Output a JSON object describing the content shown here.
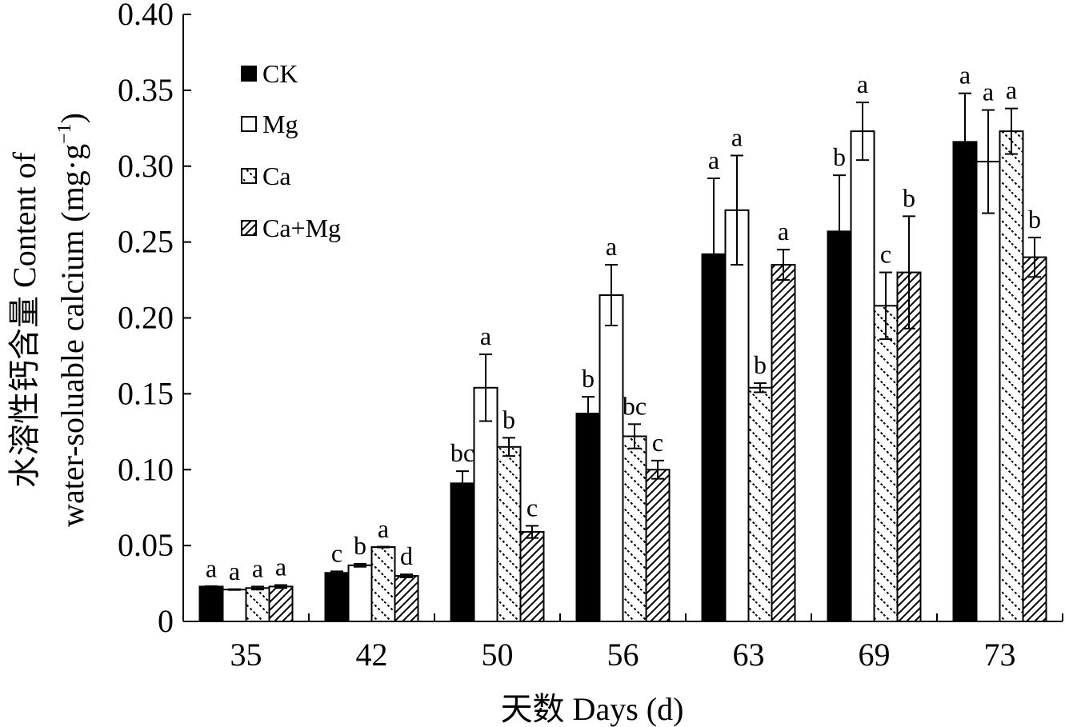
{
  "chart_data": {
    "type": "bar",
    "categories": [
      "35",
      "42",
      "50",
      "56",
      "63",
      "69",
      "73"
    ],
    "xlabel": "天数  Days (d)",
    "ylabel_line1": "水溶性钙含量 Content of",
    "ylabel_line2": "water-soluable calcium (mg·g",
    "ylabel_sup": "−1",
    "ylabel_close": ")",
    "ylim": [
      0,
      0.4
    ],
    "yticks": [
      "0",
      "0.05",
      "0.10",
      "0.15",
      "0.20",
      "0.25",
      "0.30",
      "0.35",
      "0.40"
    ],
    "ytick_values": [
      0,
      0.05,
      0.1,
      0.15,
      0.2,
      0.25,
      0.3,
      0.35,
      0.4
    ],
    "legend_position": "top-left",
    "series": [
      {
        "name": "CK",
        "pattern": "solid",
        "values": [
          0.023,
          0.032,
          0.091,
          0.137,
          0.242,
          0.257,
          0.316
        ],
        "errors": [
          0.0,
          0.001,
          0.008,
          0.011,
          0.05,
          0.037,
          0.032
        ],
        "letters": [
          "a",
          "c",
          "bc",
          "b",
          "a",
          "b",
          "a"
        ]
      },
      {
        "name": "Mg",
        "pattern": "open",
        "values": [
          0.021,
          0.037,
          0.154,
          0.215,
          0.271,
          0.323,
          0.303
        ],
        "errors": [
          0.0,
          0.001,
          0.022,
          0.02,
          0.036,
          0.019,
          0.034
        ],
        "letters": [
          "a",
          "b",
          "a",
          "a",
          "a",
          "a",
          "a"
        ]
      },
      {
        "name": "Ca",
        "pattern": "backslash",
        "values": [
          0.022,
          0.049,
          0.115,
          0.122,
          0.154,
          0.208,
          0.323
        ],
        "errors": [
          0.001,
          0.0,
          0.006,
          0.008,
          0.003,
          0.022,
          0.015
        ],
        "letters": [
          "a",
          "a",
          "b",
          "bc",
          "b",
          "c",
          "a"
        ]
      },
      {
        "name": "Ca+Mg",
        "pattern": "slash",
        "values": [
          0.023,
          0.03,
          0.059,
          0.1,
          0.235,
          0.23,
          0.24
        ],
        "errors": [
          0.001,
          0.001,
          0.004,
          0.006,
          0.01,
          0.037,
          0.013
        ],
        "letters": [
          "a",
          "d",
          "c",
          "c",
          "a",
          "b",
          "b"
        ]
      }
    ]
  }
}
